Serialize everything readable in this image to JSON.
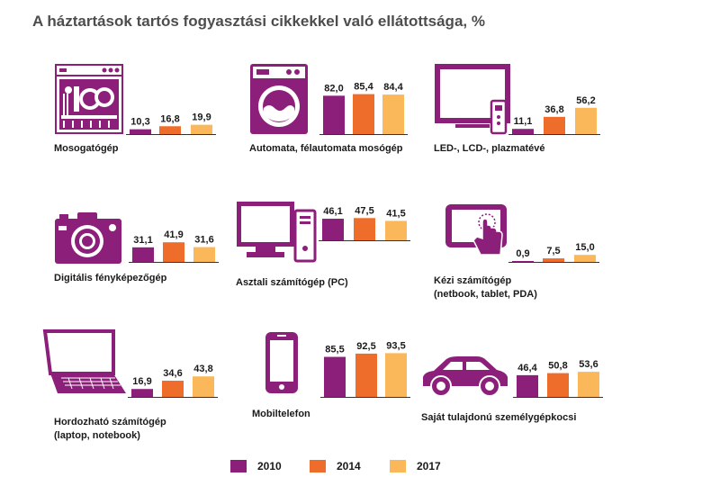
{
  "title": "A háztartások tartós fogyasztási cikkekkel való ellátottsága, %",
  "colors": {
    "icon": "#8c1f7a",
    "2010": "#8c1f7a",
    "2014": "#ef6d2a",
    "2017": "#fbb85a",
    "baseline": "#333333"
  },
  "legend": [
    {
      "label": "2010",
      "color": "#8c1f7a"
    },
    {
      "label": "2014",
      "color": "#ef6d2a"
    },
    {
      "label": "2017",
      "color": "#fbb85a"
    }
  ],
  "chart_data": {
    "type": "bar",
    "ylim": [
      0,
      100
    ],
    "series_names": [
      "2010",
      "2014",
      "2017"
    ],
    "categories": [
      {
        "label": "Mosogatógép",
        "label2": "",
        "icon": "dishwasher-icon",
        "values": [
          10.3,
          16.8,
          19.9
        ],
        "texts": [
          "10,3",
          "16,8",
          "19,9"
        ]
      },
      {
        "label": "Automata, félautomata mosógép",
        "label2": "",
        "icon": "washing-machine-icon",
        "values": [
          82.0,
          85.4,
          84.4
        ],
        "texts": [
          "82,0",
          "85,4",
          "84,4"
        ]
      },
      {
        "label": "LED-, LCD-, plazmatévé",
        "label2": "",
        "icon": "tv-icon",
        "values": [
          11.1,
          36.8,
          56.2
        ],
        "texts": [
          "11,1",
          "36,8",
          "56,2"
        ]
      },
      {
        "label": "Digitális fényképezőgép",
        "label2": "",
        "icon": "camera-icon",
        "values": [
          31.1,
          41.9,
          31.6
        ],
        "texts": [
          "31,1",
          "41,9",
          "31,6"
        ]
      },
      {
        "label": "Asztali számítógép (PC)",
        "label2": "",
        "icon": "desktop-pc-icon",
        "values": [
          46.1,
          47.5,
          41.5
        ],
        "texts": [
          "46,1",
          "47,5",
          "41,5"
        ]
      },
      {
        "label": "Kézi számítógép",
        "label2": "(netbook, tablet, PDA)",
        "icon": "tablet-icon",
        "values": [
          0.9,
          7.5,
          15.0
        ],
        "texts": [
          "0,9",
          "7,5",
          "15,0"
        ]
      },
      {
        "label": "Hordozható számítógép",
        "label2": "(laptop, notebook)",
        "icon": "laptop-icon",
        "values": [
          16.9,
          34.6,
          43.8
        ],
        "texts": [
          "16,9",
          "34,6",
          "43,8"
        ]
      },
      {
        "label": "Mobiltelefon",
        "label2": "",
        "icon": "mobile-phone-icon",
        "values": [
          85.5,
          92.5,
          93.5
        ],
        "texts": [
          "85,5",
          "92,5",
          "93,5"
        ]
      },
      {
        "label": "Saját tulajdonú személygépkocsi",
        "label2": "",
        "icon": "car-icon",
        "values": [
          46.4,
          50.8,
          53.6
        ],
        "texts": [
          "46,4",
          "50,8",
          "53,6"
        ]
      }
    ]
  }
}
